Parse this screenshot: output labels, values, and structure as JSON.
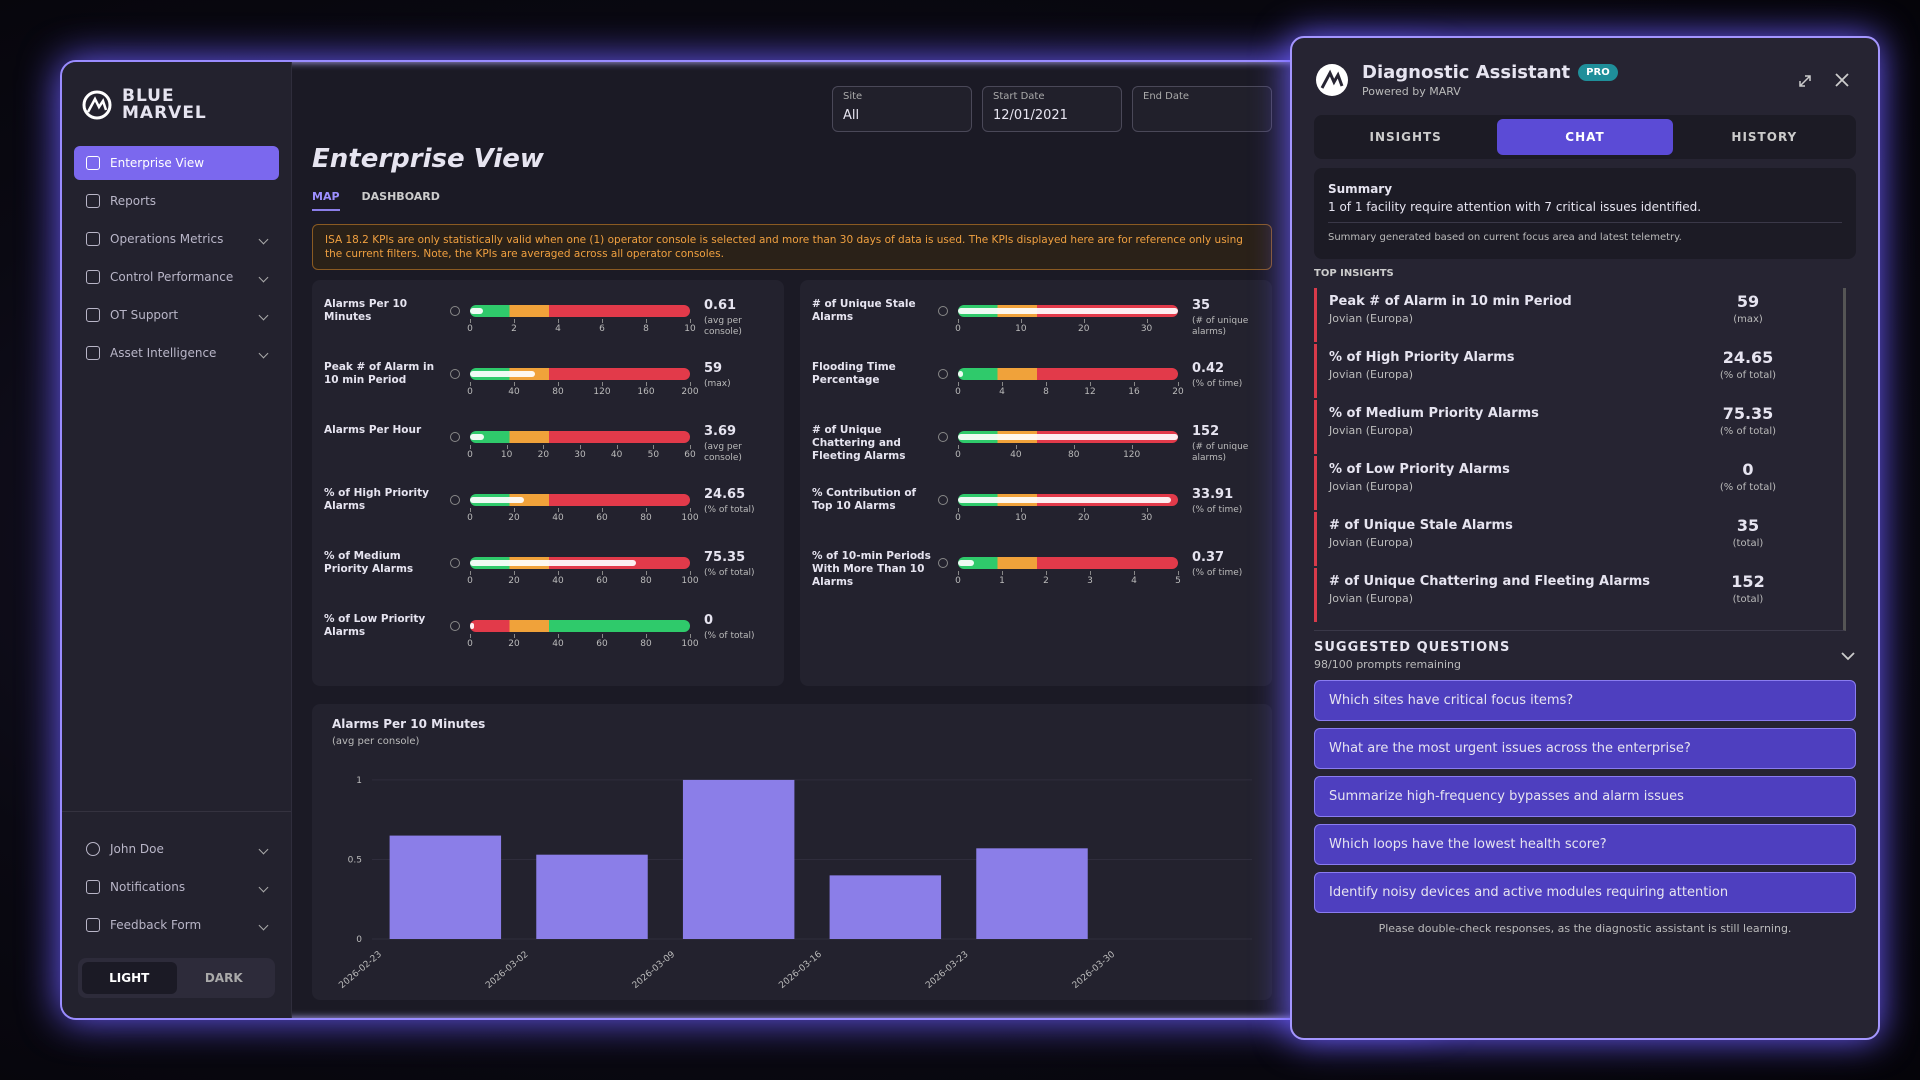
{
  "sidebar": {
    "brand": [
      "BLUE",
      "MARVEL"
    ],
    "nav": [
      "Enterprise View",
      "Reports",
      "Operations Metrics",
      "Control Performance",
      "OT Support",
      "Asset Intelligence"
    ],
    "user": "John Doe",
    "footer_nav": [
      "Notifications",
      "Feedback Form"
    ],
    "theme": [
      "LIGHT",
      "DARK"
    ]
  },
  "header": {
    "title": "Enterprise View",
    "tabs": [
      "MAP",
      "DASHBOARD"
    ],
    "warning": "ISA 18.2 KPIs are only statistically valid when one (1) operator console is selected and more than 30 days of data is used. The KPIs displayed here are for reference only using the current filters. Note, the KPIs are averaged across all operator consoles.",
    "filters": [
      {
        "label": "Site",
        "value": "All"
      },
      {
        "label": "Start Date",
        "value": "12/01/2021"
      },
      {
        "label": "End Date"
      }
    ]
  },
  "kpis": {
    "left": [
      {
        "label": "Alarms Per 10 Minutes",
        "value": 0.61,
        "unit": "(avg per console)",
        "lim": [
          0,
          10
        ],
        "ticks": [
          0,
          2,
          4,
          6,
          8,
          10
        ],
        "colors": [
          "#2fca6b",
          "#f0a23a",
          "#e23a4a"
        ]
      },
      {
        "label": "Peak # of Alarm in 10 min Period",
        "value": 59,
        "unit": "(max)",
        "lim": [
          0,
          200
        ],
        "ticks": [
          0,
          40,
          80,
          120,
          160,
          200
        ],
        "colors": [
          "#2fca6b",
          "#f0a23a",
          "#e23a4a"
        ]
      },
      {
        "label": "Alarms Per Hour",
        "value": 3.69,
        "unit": "(avg per console)",
        "lim": [
          0,
          60
        ],
        "ticks": [
          0,
          10,
          20,
          30,
          40,
          50,
          60
        ],
        "colors": [
          "#2fca6b",
          "#f0a23a",
          "#e23a4a"
        ]
      },
      {
        "label": "% of High Priority Alarms",
        "value": 24.65,
        "unit": "(% of total)",
        "lim": [
          0,
          100
        ],
        "ticks": [
          0,
          20,
          40,
          60,
          80,
          100
        ],
        "colors": [
          "#2fca6b",
          "#f0a23a",
          "#e23a4a"
        ]
      },
      {
        "label": "% of Medium Priority Alarms",
        "value": 75.35,
        "unit": "(% of total)",
        "lim": [
          0,
          100
        ],
        "ticks": [
          0,
          20,
          40,
          60,
          80,
          100
        ],
        "colors": [
          "#2fca6b",
          "#f0a23a",
          "#e23a4a"
        ]
      },
      {
        "label": "% of Low Priority Alarms",
        "value": 0,
        "unit": "(% of total)",
        "lim": [
          0,
          100
        ],
        "ticks": [
          0,
          20,
          40,
          60,
          80,
          100
        ],
        "colors": [
          "#e23a4a",
          "#f0a23a",
          "#2fca6b"
        ]
      }
    ],
    "right": [
      {
        "label": "# of Unique Stale Alarms",
        "value": 35,
        "unit": "(# of unique alarms)",
        "lim": [
          0,
          35
        ],
        "ticks": [
          0,
          10,
          20,
          30
        ],
        "colors": [
          "#2fca6b",
          "#f0a23a",
          "#e23a4a"
        ]
      },
      {
        "label": "Flooding Time Percentage",
        "value": 0.42,
        "unit": "(% of time)",
        "lim": [
          0,
          20
        ],
        "ticks": [
          0,
          4,
          8,
          12,
          16,
          20
        ],
        "colors": [
          "#2fca6b",
          "#f0a23a",
          "#e23a4a"
        ]
      },
      {
        "label": "# of Unique Chattering and Fleeting Alarms",
        "value": 152,
        "unit": "(# of unique alarms)",
        "lim": [
          0,
          152
        ],
        "ticks": [
          0,
          40,
          80,
          120
        ],
        "colors": [
          "#2fca6b",
          "#f0a23a",
          "#e23a4a"
        ]
      },
      {
        "label": "% Contribution of Top 10 Alarms",
        "value": 33.91,
        "unit": "(% of time)",
        "lim": [
          0,
          35
        ],
        "ticks": [
          0,
          10,
          20,
          30
        ],
        "colors": [
          "#2fca6b",
          "#f0a23a",
          "#e23a4a"
        ]
      },
      {
        "label": "% of 10-min Periods With More Than 10 Alarms",
        "value": 0.37,
        "unit": "(% of time)",
        "lim": [
          0,
          5
        ],
        "ticks": [
          0,
          1,
          2,
          3,
          4,
          5
        ],
        "colors": [
          "#2fca6b",
          "#f0a23a",
          "#e23a4a"
        ]
      }
    ]
  },
  "chart_data": {
    "type": "bar",
    "title": "Alarms Per 10 Minutes",
    "subtitle": "(avg per console)",
    "categories": [
      "2026-02-23",
      "2026-03-02",
      "2026-03-09",
      "2026-03-16",
      "2026-03-23",
      "2026-03-30"
    ],
    "values": [
      0.65,
      0.53,
      1.0,
      0.4,
      0.57,
      null
    ],
    "color": "#8b7ee8",
    "ylim": [
      0,
      1.1
    ],
    "yticks": [
      0,
      0.5,
      1
    ]
  },
  "assistant": {
    "title": "Diagnostic Assistant",
    "badge": "PRO",
    "subtitle": "Powered by MARV",
    "tabs": [
      "INSIGHTS",
      "CHAT",
      "HISTORY"
    ],
    "summary": {
      "heading": "Summary",
      "text": "1 of 1 facility require attention with 7 critical issues identified.",
      "note": "Summary generated based on current focus area and latest telemetry."
    },
    "insights_heading": "TOP INSIGHTS",
    "insights": [
      {
        "name": "Peak # of Alarm in 10 min Period",
        "site": "Jovian (Europa)",
        "value": 59,
        "unit": "(max)"
      },
      {
        "name": "% of High Priority Alarms",
        "site": "Jovian (Europa)",
        "value": 24.65,
        "unit": "(% of total)"
      },
      {
        "name": "% of Medium Priority Alarms",
        "site": "Jovian (Europa)",
        "value": 75.35,
        "unit": "(% of total)"
      },
      {
        "name": "% of Low Priority Alarms",
        "site": "Jovian (Europa)",
        "value": 0,
        "unit": "(% of total)"
      },
      {
        "name": "# of Unique Stale Alarms",
        "site": "Jovian (Europa)",
        "value": 35,
        "unit": "(total)"
      },
      {
        "name": "# of Unique Chattering and Fleeting Alarms",
        "site": "Jovian (Europa)",
        "value": 152,
        "unit": "(total)"
      }
    ],
    "questions_heading": "SUGGESTED QUESTIONS",
    "prompts_remaining": "98/100 prompts remaining",
    "questions": [
      "Which sites have critical focus items?",
      "What are the most urgent issues across the enterprise?",
      "Summarize high-frequency bypasses and alarm issues",
      "Which loops have the lowest health score?",
      "Identify noisy devices and active modules requiring attention"
    ],
    "disclaimer": "Please double-check responses, as the diagnostic assistant is still learning."
  }
}
